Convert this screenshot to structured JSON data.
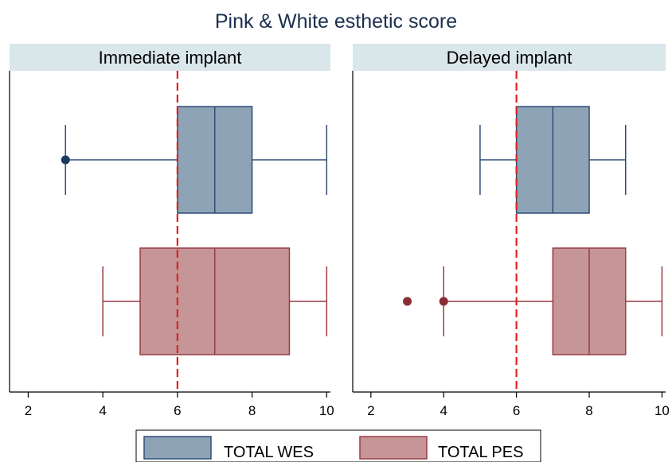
{
  "chart_data": {
    "type": "box",
    "title": "Pink & White esthetic score",
    "xlim": [
      1.5,
      10.1
    ],
    "x_ticks": [
      2,
      4,
      6,
      8,
      10
    ],
    "reference_line": 6,
    "grid": false,
    "legend_position": "bottom",
    "panels": [
      {
        "name": "Immediate implant",
        "series": [
          {
            "name": "TOTAL WES",
            "min": 3,
            "q1": 6,
            "median": 7,
            "q3": 8,
            "max": 10,
            "outliers": [
              3
            ]
          },
          {
            "name": "TOTAL PES",
            "min": 4,
            "q1": 5,
            "median": 7,
            "q3": 9,
            "max": 10,
            "outliers": []
          }
        ]
      },
      {
        "name": "Delayed implant",
        "series": [
          {
            "name": "TOTAL WES",
            "min": 5,
            "q1": 6,
            "median": 7,
            "q3": 8,
            "max": 9,
            "outliers": []
          },
          {
            "name": "TOTAL PES",
            "min": 4,
            "q1": 7,
            "median": 8,
            "q3": 9,
            "max": 10,
            "outliers": [
              3,
              4
            ]
          }
        ]
      }
    ],
    "legend": [
      "TOTAL WES",
      "TOTAL PES"
    ],
    "colors": {
      "wes_fill": "#8fa3b6",
      "wes_line": "#2f4f77",
      "wes_dot": "#1e3a5f",
      "pes_fill": "#c59598",
      "pes_line": "#9a3c44",
      "pes_dot": "#8b2d35",
      "reference_line": "#e02020",
      "strip_bg": "#d9e6ea",
      "title": "#1b2f4e"
    }
  }
}
